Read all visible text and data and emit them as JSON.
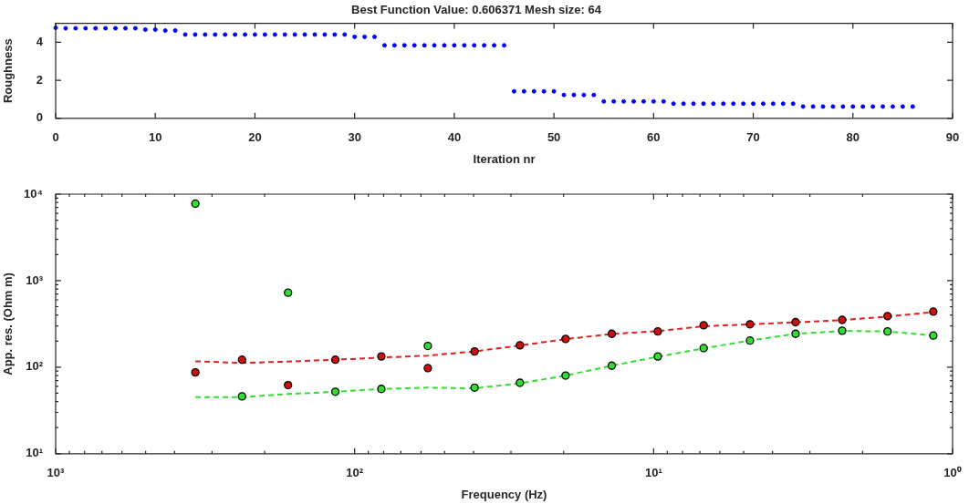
{
  "chart_data": [
    {
      "type": "scatter",
      "title": "Best Function Value: 0.606371 Mesh size: 64",
      "xlabel": "Iteration nr",
      "ylabel": "Roughness",
      "x": [
        0,
        1,
        2,
        3,
        4,
        5,
        6,
        7,
        8,
        9,
        10,
        11,
        12,
        13,
        14,
        15,
        16,
        17,
        18,
        19,
        20,
        21,
        22,
        23,
        24,
        25,
        26,
        27,
        28,
        29,
        30,
        31,
        32,
        33,
        34,
        35,
        36,
        37,
        38,
        39,
        40,
        41,
        42,
        43,
        44,
        45,
        46,
        47,
        48,
        49,
        50,
        51,
        52,
        53,
        54,
        55,
        56,
        57,
        58,
        59,
        60,
        61,
        62,
        63,
        64,
        65,
        66,
        67,
        68,
        69,
        70,
        71,
        72,
        73,
        74,
        75,
        76,
        77,
        78,
        79,
        80,
        81,
        82,
        83,
        84,
        85,
        86
      ],
      "values": [
        4.76,
        4.74,
        4.74,
        4.74,
        4.74,
        4.74,
        4.74,
        4.74,
        4.74,
        4.67,
        4.67,
        4.62,
        4.62,
        4.41,
        4.41,
        4.41,
        4.41,
        4.41,
        4.41,
        4.41,
        4.41,
        4.41,
        4.41,
        4.41,
        4.41,
        4.41,
        4.41,
        4.41,
        4.41,
        4.41,
        4.29,
        4.29,
        4.29,
        3.84,
        3.84,
        3.84,
        3.84,
        3.84,
        3.84,
        3.84,
        3.84,
        3.84,
        3.84,
        3.84,
        3.84,
        3.84,
        1.42,
        1.42,
        1.42,
        1.42,
        1.42,
        1.23,
        1.23,
        1.23,
        1.23,
        0.89,
        0.89,
        0.89,
        0.89,
        0.89,
        0.89,
        0.89,
        0.77,
        0.77,
        0.77,
        0.77,
        0.77,
        0.77,
        0.77,
        0.77,
        0.77,
        0.77,
        0.77,
        0.77,
        0.77,
        0.62,
        0.62,
        0.62,
        0.62,
        0.62,
        0.62,
        0.62,
        0.62,
        0.62,
        0.62,
        0.62,
        0.62
      ],
      "color": "#0000ff",
      "marker": "circle",
      "xlim": [
        0,
        90
      ],
      "xticks": [
        0,
        10,
        20,
        30,
        40,
        50,
        60,
        70,
        80,
        90
      ],
      "ylim": [
        0,
        5
      ],
      "yticks": [
        0,
        2,
        4
      ]
    },
    {
      "type": "scatter",
      "xlabel": "Frequency (Hz)",
      "ylabel": "App. res. (Ohm m)",
      "log": "xy",
      "x": [
        341,
        238,
        167,
        116,
        81.4,
        56.9,
        39.7,
        28.0,
        19.7,
        13.8,
        9.68,
        6.8,
        4.76,
        3.35,
        2.34,
        1.65,
        1.16
      ],
      "series": [
        {
          "type": "line",
          "color": "#dd2222",
          "line_style": "dashed",
          "marker": "none",
          "values": [
            117,
            112,
            116,
            122,
            129,
            136,
            152,
            178,
            211,
            242,
            261,
            297,
            313,
            330,
            350,
            385,
            432
          ]
        },
        {
          "type": "line",
          "color": "#33dd33",
          "line_style": "dashed",
          "marker": "none",
          "values": [
            45,
            45,
            49,
            52,
            56,
            58,
            57,
            65,
            80,
            104,
            132,
            165,
            203,
            243,
            262,
            259,
            232
          ]
        },
        {
          "type": "scatter",
          "color": "#cc1111",
          "marker": "circle",
          "values": [
            87,
            122,
            62,
            122,
            133,
            97.5,
            152,
            179,
            212,
            243,
            259,
            305,
            313,
            331,
            352,
            389,
            438
          ]
        },
        {
          "type": "scatter",
          "color": "#33dd33",
          "marker": "circle",
          "values": [
            7760,
            46,
            726,
            52,
            56,
            176,
            58,
            66,
            80,
            104,
            133,
            166,
            203,
            243,
            264,
            259,
            232
          ]
        }
      ],
      "xlim": [
        1000,
        1
      ],
      "xticks": [
        {
          "value": 1000,
          "label": "10³"
        },
        {
          "value": 900,
          "label": null
        },
        {
          "value": 800,
          "label": null
        },
        {
          "value": 700,
          "label": null
        },
        {
          "value": 600,
          "label": null
        },
        {
          "value": 500,
          "label": null
        },
        {
          "value": 400,
          "label": null
        },
        {
          "value": 300,
          "label": null
        },
        {
          "value": 200,
          "label": null
        },
        {
          "value": 100,
          "label": "10²"
        },
        {
          "value": 90,
          "label": null
        },
        {
          "value": 80,
          "label": null
        },
        {
          "value": 70,
          "label": null
        },
        {
          "value": 60,
          "label": null
        },
        {
          "value": 50,
          "label": null
        },
        {
          "value": 40,
          "label": null
        },
        {
          "value": 30,
          "label": null
        },
        {
          "value": 20,
          "label": null
        },
        {
          "value": 10,
          "label": "10¹"
        },
        {
          "value": 9,
          "label": null
        },
        {
          "value": 8,
          "label": null
        },
        {
          "value": 7,
          "label": null
        },
        {
          "value": 6,
          "label": null
        },
        {
          "value": 5,
          "label": null
        },
        {
          "value": 4,
          "label": null
        },
        {
          "value": 3,
          "label": null
        },
        {
          "value": 2,
          "label": null
        },
        {
          "value": 1,
          "label": "10⁰"
        }
      ],
      "ylim": [
        10,
        10000
      ],
      "yticks": [
        {
          "value": 10,
          "label": "10¹"
        },
        {
          "value": 20,
          "label": null
        },
        {
          "value": 30,
          "label": null
        },
        {
          "value": 40,
          "label": null
        },
        {
          "value": 50,
          "label": null
        },
        {
          "value": 60,
          "label": null
        },
        {
          "value": 70,
          "label": null
        },
        {
          "value": 80,
          "label": null
        },
        {
          "value": 90,
          "label": null
        },
        {
          "value": 100,
          "label": "10²"
        },
        {
          "value": 200,
          "label": null
        },
        {
          "value": 300,
          "label": null
        },
        {
          "value": 400,
          "label": null
        },
        {
          "value": 500,
          "label": null
        },
        {
          "value": 600,
          "label": null
        },
        {
          "value": 700,
          "label": null
        },
        {
          "value": 800,
          "label": null
        },
        {
          "value": 900,
          "label": null
        },
        {
          "value": 1000,
          "label": "10³"
        },
        {
          "value": 2000,
          "label": null
        },
        {
          "value": 3000,
          "label": null
        },
        {
          "value": 4000,
          "label": null
        },
        {
          "value": 5000,
          "label": null
        },
        {
          "value": 6000,
          "label": null
        },
        {
          "value": 7000,
          "label": null
        },
        {
          "value": 8000,
          "label": null
        },
        {
          "value": 9000,
          "label": null
        },
        {
          "value": 10000,
          "label": "10⁴"
        }
      ]
    }
  ]
}
